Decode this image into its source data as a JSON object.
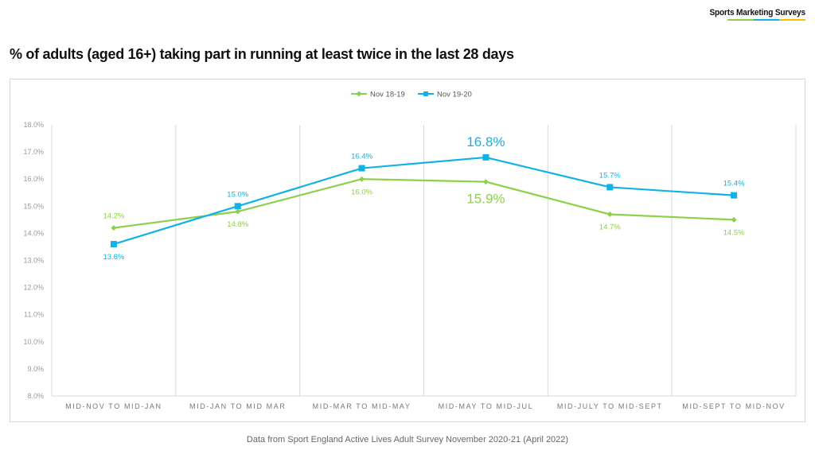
{
  "brand": {
    "name": "Sports Marketing Surveys",
    "bar_colors": [
      "#8dd04b",
      "#12b1e6",
      "#f2c200"
    ]
  },
  "title": "% of adults (aged 16+) taking part in running at least twice in the last 28 days",
  "source": "Data from Sport England Active Lives Adult Survey November 2020-21 (April 2022)",
  "chart_data": {
    "type": "line",
    "categories": [
      "MID-NOV TO MID-JAN",
      "MID-JAN TO MID MAR",
      "MID-MAR TO MID-MAY",
      "MID-MAY TO MID-JUL",
      "MID-JULY TO MID-SEPT",
      "MID-SEPT TO MID-NOV"
    ],
    "series": [
      {
        "name": "Nov 18-19",
        "color": "#8dd04b",
        "marker": "diamond",
        "values": [
          14.2,
          14.8,
          16.0,
          15.9,
          14.7,
          14.5
        ],
        "labels": [
          "14.2%",
          "14.8%",
          "16.0%",
          "15.9%",
          "14.7%",
          "14.5%"
        ],
        "label_pos": [
          "above",
          "below",
          "below",
          "below",
          "below",
          "below"
        ],
        "label_emphasis": [
          false,
          false,
          false,
          true,
          false,
          false
        ]
      },
      {
        "name": "Nov 19-20",
        "color": "#12b1e6",
        "marker": "square",
        "values": [
          13.6,
          15.0,
          16.4,
          16.8,
          15.7,
          15.4
        ],
        "labels": [
          "13.6%",
          "15.0%",
          "16.4%",
          "16.8%",
          "15.7%",
          "15.4%"
        ],
        "label_pos": [
          "below",
          "above",
          "above",
          "above",
          "above",
          "above"
        ],
        "label_emphasis": [
          false,
          false,
          false,
          true,
          false,
          false
        ]
      }
    ],
    "yticks": [
      "8.0%",
      "9.0%",
      "10.0%",
      "11.0%",
      "12.0%",
      "13.0%",
      "14.0%",
      "15.0%",
      "16.0%",
      "17.0%",
      "18.0%"
    ],
    "ylim": [
      8,
      18
    ],
    "legend": "top-center",
    "grid": "vertical"
  }
}
